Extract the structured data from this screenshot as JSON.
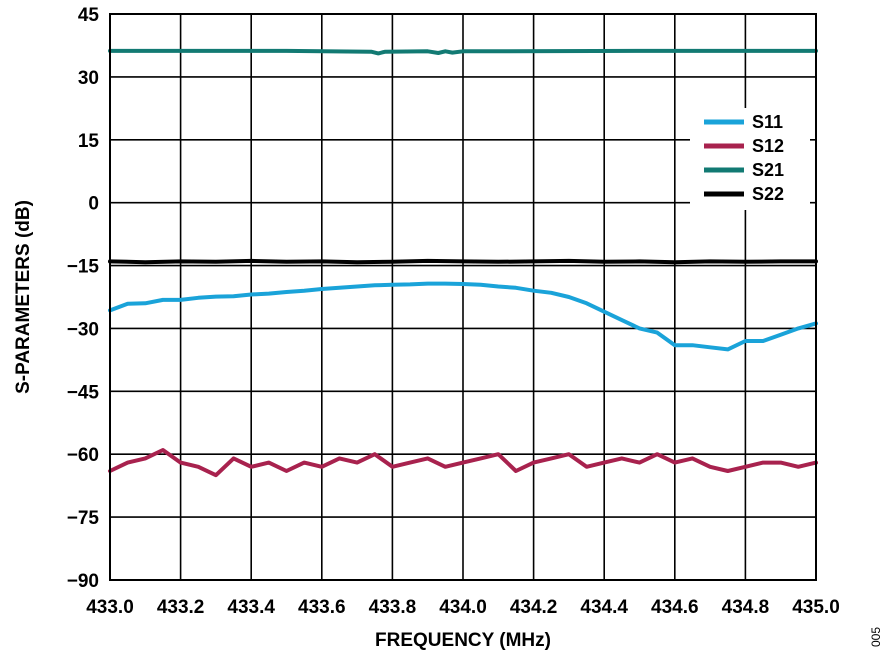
{
  "figure_id": "005",
  "chart_data": {
    "type": "line",
    "title": "",
    "xlabel": "FREQUENCY (MHz)",
    "ylabel": "S-PARAMETERS (dB)",
    "xlim": [
      433.0,
      435.0
    ],
    "ylim": [
      -90,
      45
    ],
    "xticks": [
      433.0,
      433.2,
      433.4,
      433.6,
      433.8,
      434.0,
      434.2,
      434.4,
      434.6,
      434.8,
      435.0
    ],
    "yticks": [
      45,
      30,
      15,
      0,
      -15,
      -30,
      -45,
      -60,
      -75,
      -90
    ],
    "xtick_labels": [
      "433.0",
      "433.2",
      "433.4",
      "433.6",
      "433.8",
      "434.0",
      "434.2",
      "434.4",
      "434.6",
      "434.8",
      "435.0"
    ],
    "ytick_labels": [
      "45",
      "30",
      "15",
      "0",
      "−15",
      "−30",
      "−45",
      "−60",
      "−75",
      "−90"
    ],
    "grid": true,
    "legend": "top-right",
    "series": [
      {
        "name": "S11",
        "color": "#1aa3d9",
        "x": [
          433.0,
          433.05,
          433.1,
          433.15,
          433.2,
          433.25,
          433.3,
          433.35,
          433.4,
          433.45,
          433.5,
          433.55,
          433.6,
          433.65,
          433.7,
          433.75,
          433.8,
          433.85,
          433.9,
          433.95,
          434.0,
          434.05,
          434.1,
          434.15,
          434.2,
          434.25,
          434.3,
          434.35,
          434.4,
          434.45,
          434.5,
          434.55,
          434.6,
          434.65,
          434.7,
          434.75,
          434.8,
          434.85,
          434.9,
          434.95,
          435.0
        ],
        "values": [
          -25.7,
          -24.1,
          -24.0,
          -23.2,
          -23.2,
          -22.7,
          -22.4,
          -22.3,
          -21.9,
          -21.7,
          -21.3,
          -21.0,
          -20.6,
          -20.3,
          -20.0,
          -19.7,
          -19.6,
          -19.5,
          -19.3,
          -19.3,
          -19.4,
          -19.6,
          -20.0,
          -20.3,
          -21.0,
          -21.5,
          -22.5,
          -24.0,
          -26.0,
          -28.0,
          -30.0,
          -31.0,
          -34.0,
          -34.0,
          -34.5,
          -35.0,
          -33.0,
          -33.0,
          -31.5,
          -30.0,
          -28.8
        ]
      },
      {
        "name": "S12",
        "color": "#a8224e",
        "x": [
          433.0,
          433.05,
          433.1,
          433.15,
          433.2,
          433.25,
          433.3,
          433.35,
          433.4,
          433.45,
          433.5,
          433.55,
          433.6,
          433.65,
          433.7,
          433.75,
          433.8,
          433.85,
          433.9,
          433.95,
          434.0,
          434.05,
          434.1,
          434.15,
          434.2,
          434.25,
          434.3,
          434.35,
          434.4,
          434.45,
          434.5,
          434.55,
          434.6,
          434.65,
          434.7,
          434.75,
          434.8,
          434.85,
          434.9,
          434.95,
          435.0
        ],
        "values": [
          -64,
          -62,
          -61,
          -59,
          -62,
          -63,
          -65,
          -61,
          -63,
          -62,
          -64,
          -62,
          -63,
          -61,
          -62,
          -60,
          -63,
          -62,
          -61,
          -63,
          -62,
          -61,
          -60,
          -64,
          -62,
          -61,
          -60,
          -63,
          -62,
          -61,
          -62,
          -60,
          -62,
          -61,
          -63,
          -64,
          -63,
          -62,
          -62,
          -63,
          -62
        ]
      },
      {
        "name": "S21",
        "color": "#127a73",
        "x": [
          433.0,
          433.5,
          433.74,
          433.76,
          433.78,
          433.9,
          433.93,
          433.95,
          433.97,
          434.0,
          434.5,
          435.0
        ],
        "values": [
          36.2,
          36.2,
          36.0,
          35.6,
          36.0,
          36.1,
          35.7,
          36.1,
          35.8,
          36.1,
          36.2,
          36.2
        ]
      },
      {
        "name": "S22",
        "color": "#000000",
        "x": [
          433.0,
          433.1,
          433.2,
          433.3,
          433.4,
          433.5,
          433.6,
          433.7,
          433.8,
          433.9,
          434.0,
          434.1,
          434.2,
          434.3,
          434.4,
          434.5,
          434.6,
          434.7,
          434.8,
          434.9,
          435.0
        ],
        "values": [
          -14.0,
          -14.2,
          -14.0,
          -14.1,
          -13.9,
          -14.1,
          -14.0,
          -14.2,
          -14.1,
          -13.9,
          -14.0,
          -14.1,
          -14.0,
          -13.9,
          -14.1,
          -14.0,
          -14.2,
          -14.0,
          -14.1,
          -14.0,
          -14.0
        ]
      }
    ]
  }
}
